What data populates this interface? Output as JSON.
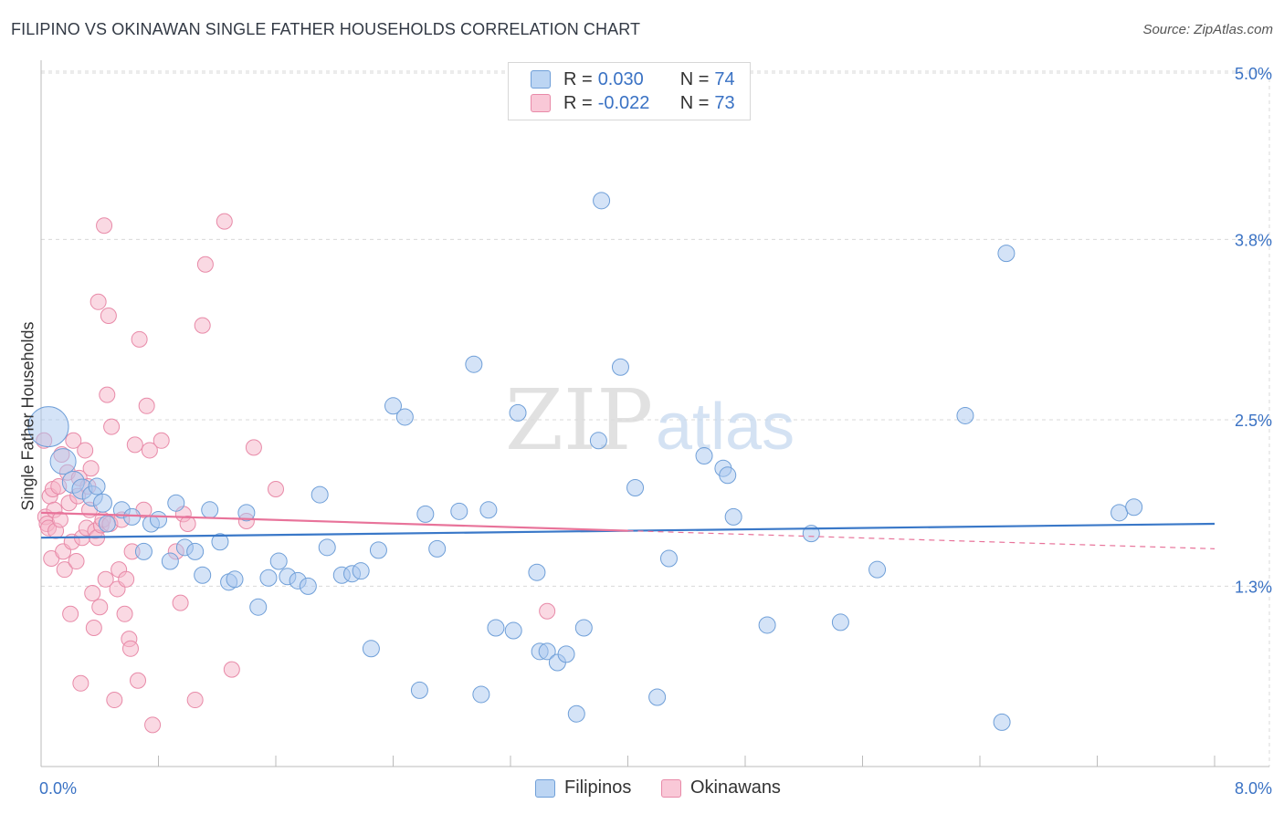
{
  "title": "FILIPINO VS OKINAWAN SINGLE FATHER HOUSEHOLDS CORRELATION CHART",
  "source": "Source: ZipAtlas.com",
  "watermark": {
    "bold": "ZIP",
    "light": "atlas"
  },
  "legend": {
    "row1": {
      "r_label": "R =",
      "r_value": "0.030",
      "n_label": "N =",
      "n_value": "74"
    },
    "row2": {
      "r_label": "R =",
      "r_value": "-0.022",
      "n_label": "N =",
      "n_value": "73"
    }
  },
  "bottom_legend": {
    "series1": "Filipinos",
    "series2": "Okinawans"
  },
  "colors": {
    "blue_fill": "#a9c8f0",
    "blue_stroke": "#6f9fd8",
    "blue_line": "#3a78c8",
    "pink_fill": "#f6b3c8",
    "pink_stroke": "#e88aa8",
    "pink_line": "#e8739a",
    "grid": "#d9d9d9",
    "tick_label": "#3a72c4"
  },
  "chart_data": {
    "type": "scatter",
    "title": "FILIPINO VS OKINAWAN SINGLE FATHER HOUSEHOLDS CORRELATION CHART",
    "xlabel": "",
    "ylabel": "Single Father Households",
    "xlim": [
      0,
      8.0
    ],
    "ylim": [
      0,
      5.0
    ],
    "x_tick_labels": [
      "0.0%",
      "8.0%"
    ],
    "y_ticks": [
      1.3,
      2.5,
      3.8,
      5.0
    ],
    "y_tick_labels": [
      "1.3%",
      "2.5%",
      "3.8%",
      "5.0%"
    ],
    "grid": true,
    "legend_position": "top-center",
    "series": [
      {
        "name": "Filipinos",
        "color": "#a9c8f0",
        "r": 0.03,
        "n": 74,
        "trend": {
          "x": [
            0,
            8.0
          ],
          "y": [
            1.65,
            1.75
          ]
        },
        "points": [
          [
            0.05,
            2.45,
            22
          ],
          [
            0.15,
            2.2,
            14
          ],
          [
            0.22,
            2.05,
            12
          ],
          [
            0.28,
            2.0,
            11
          ],
          [
            0.35,
            1.95,
            11
          ],
          [
            0.38,
            2.02,
            9
          ],
          [
            0.42,
            1.9,
            10
          ],
          [
            0.45,
            1.75,
            9
          ],
          [
            0.55,
            1.85,
            9
          ],
          [
            0.62,
            1.8,
            9
          ],
          [
            0.7,
            1.55,
            9
          ],
          [
            0.75,
            1.75,
            9
          ],
          [
            0.8,
            1.78,
            9
          ],
          [
            0.88,
            1.48,
            9
          ],
          [
            0.92,
            1.9,
            9
          ],
          [
            0.98,
            1.58,
            9
          ],
          [
            1.05,
            1.55,
            9
          ],
          [
            1.1,
            1.38,
            9
          ],
          [
            1.15,
            1.85,
            9
          ],
          [
            1.22,
            1.62,
            9
          ],
          [
            1.28,
            1.33,
            9
          ],
          [
            1.32,
            1.35,
            9
          ],
          [
            1.4,
            1.83,
            9
          ],
          [
            1.48,
            1.15,
            9
          ],
          [
            1.55,
            1.36,
            9
          ],
          [
            1.62,
            1.48,
            9
          ],
          [
            1.68,
            1.37,
            9
          ],
          [
            1.75,
            1.34,
            9
          ],
          [
            1.82,
            1.3,
            9
          ],
          [
            1.9,
            1.96,
            9
          ],
          [
            1.95,
            1.58,
            9
          ],
          [
            2.05,
            1.38,
            9
          ],
          [
            2.12,
            1.39,
            9
          ],
          [
            2.18,
            1.41,
            9
          ],
          [
            2.25,
            0.85,
            9
          ],
          [
            2.3,
            1.56,
            9
          ],
          [
            2.4,
            2.6,
            9
          ],
          [
            2.48,
            2.52,
            9
          ],
          [
            2.58,
            0.55,
            9
          ],
          [
            2.62,
            1.82,
            9
          ],
          [
            2.7,
            1.57,
            9
          ],
          [
            2.85,
            1.84,
            9
          ],
          [
            2.95,
            2.9,
            9
          ],
          [
            3.0,
            0.52,
            9
          ],
          [
            3.05,
            1.85,
            9
          ],
          [
            3.1,
            1.0,
            9
          ],
          [
            3.22,
            0.98,
            9
          ],
          [
            3.25,
            2.55,
            9
          ],
          [
            3.38,
            1.4,
            9
          ],
          [
            3.4,
            0.83,
            9
          ],
          [
            3.45,
            0.83,
            9
          ],
          [
            3.52,
            0.75,
            9
          ],
          [
            3.58,
            0.81,
            9
          ],
          [
            3.65,
            0.38,
            9
          ],
          [
            3.7,
            1.0,
            9
          ],
          [
            3.8,
            2.35,
            9
          ],
          [
            3.82,
            4.08,
            9
          ],
          [
            3.95,
            2.88,
            9
          ],
          [
            4.05,
            2.01,
            9
          ],
          [
            4.2,
            0.5,
            9
          ],
          [
            4.28,
            1.5,
            9
          ],
          [
            4.52,
            2.24,
            9
          ],
          [
            4.65,
            2.15,
            9
          ],
          [
            4.68,
            2.1,
            9
          ],
          [
            4.72,
            1.8,
            9
          ],
          [
            4.95,
            1.02,
            9
          ],
          [
            5.25,
            1.68,
            9
          ],
          [
            5.45,
            1.04,
            9
          ],
          [
            5.7,
            1.42,
            9
          ],
          [
            6.3,
            2.53,
            9
          ],
          [
            6.55,
            0.32,
            9
          ],
          [
            6.58,
            3.7,
            9
          ],
          [
            7.35,
            1.83,
            9
          ],
          [
            7.45,
            1.87,
            9
          ]
        ]
      },
      {
        "name": "Okinawans",
        "color": "#f6b3c8",
        "r": -0.022,
        "n": 73,
        "trend": {
          "x": [
            0,
            4.0
          ],
          "y": [
            1.83,
            1.7
          ]
        },
        "trend_dashed": {
          "x": [
            4.0,
            8.0
          ],
          "y": [
            1.7,
            1.57
          ]
        },
        "points": [
          [
            0.02,
            2.35
          ],
          [
            0.03,
            1.8
          ],
          [
            0.04,
            1.75
          ],
          [
            0.05,
            1.72
          ],
          [
            0.06,
            1.95
          ],
          [
            0.07,
            1.5
          ],
          [
            0.08,
            2.0
          ],
          [
            0.09,
            1.85
          ],
          [
            0.1,
            1.7
          ],
          [
            0.12,
            2.02
          ],
          [
            0.13,
            1.78
          ],
          [
            0.14,
            2.25
          ],
          [
            0.15,
            1.55
          ],
          [
            0.16,
            1.42
          ],
          [
            0.18,
            2.12
          ],
          [
            0.19,
            1.9
          ],
          [
            0.2,
            1.1
          ],
          [
            0.21,
            1.62
          ],
          [
            0.22,
            2.35
          ],
          [
            0.24,
            1.48
          ],
          [
            0.25,
            1.95
          ],
          [
            0.26,
            2.08
          ],
          [
            0.27,
            0.6
          ],
          [
            0.28,
            1.65
          ],
          [
            0.3,
            2.28
          ],
          [
            0.31,
            1.72
          ],
          [
            0.32,
            2.02
          ],
          [
            0.33,
            1.85
          ],
          [
            0.34,
            2.15
          ],
          [
            0.35,
            1.25
          ],
          [
            0.36,
            1.0
          ],
          [
            0.37,
            1.7
          ],
          [
            0.38,
            1.65
          ],
          [
            0.39,
            3.35
          ],
          [
            0.4,
            1.15
          ],
          [
            0.41,
            1.74
          ],
          [
            0.42,
            1.78
          ],
          [
            0.43,
            3.9
          ],
          [
            0.44,
            1.35
          ],
          [
            0.45,
            2.68
          ],
          [
            0.46,
            3.25
          ],
          [
            0.47,
            1.75
          ],
          [
            0.48,
            2.45
          ],
          [
            0.5,
            0.48
          ],
          [
            0.52,
            1.28
          ],
          [
            0.53,
            1.42
          ],
          [
            0.55,
            1.78
          ],
          [
            0.57,
            1.1
          ],
          [
            0.58,
            1.35
          ],
          [
            0.6,
            0.92
          ],
          [
            0.61,
            0.85
          ],
          [
            0.62,
            1.55
          ],
          [
            0.64,
            2.32
          ],
          [
            0.66,
            0.62
          ],
          [
            0.67,
            3.08
          ],
          [
            0.7,
            1.85
          ],
          [
            0.72,
            2.6
          ],
          [
            0.74,
            2.28
          ],
          [
            0.76,
            0.3
          ],
          [
            0.82,
            2.35
          ],
          [
            0.92,
            1.55
          ],
          [
            0.95,
            1.18
          ],
          [
            0.97,
            1.82
          ],
          [
            1.0,
            1.75
          ],
          [
            1.05,
            0.48
          ],
          [
            1.1,
            3.18
          ],
          [
            1.12,
            3.62
          ],
          [
            1.25,
            3.93
          ],
          [
            1.3,
            0.7
          ],
          [
            1.4,
            1.77
          ],
          [
            1.45,
            2.3
          ],
          [
            1.6,
            2.0
          ],
          [
            3.45,
            1.12
          ]
        ]
      }
    ]
  }
}
